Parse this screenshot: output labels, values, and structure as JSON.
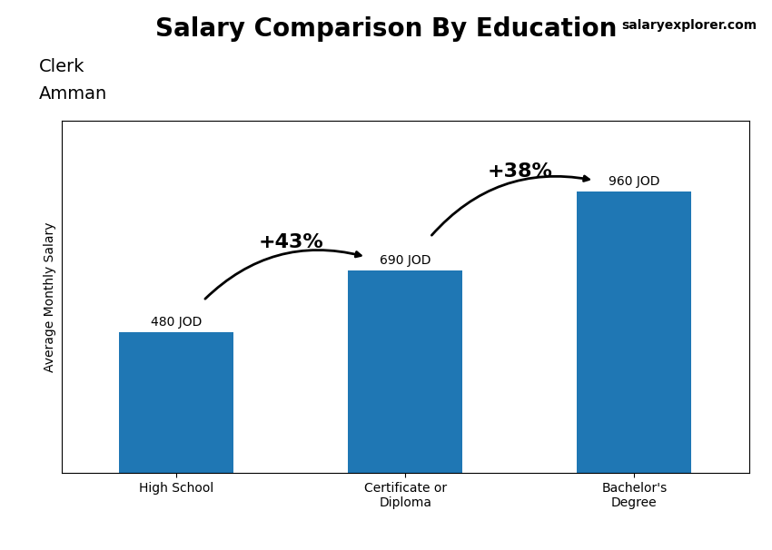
{
  "chart_data": {
    "type": "bar",
    "title": "Salary Comparison By Education",
    "subtitle": [
      "Clerk",
      "Amman"
    ],
    "brand": "salaryexplorer.com",
    "ylabel": "Average Monthly Salary",
    "categories": [
      "High School",
      "Certificate or\nDiploma",
      "Bachelor's\nDegree"
    ],
    "values": [
      480,
      690,
      960
    ],
    "value_labels": [
      "480 JOD",
      "690 JOD",
      "960 JOD"
    ],
    "data_labels": true,
    "ylim": [
      0,
      1200
    ],
    "tick_labels": "x",
    "grid": false,
    "annotations": [
      {
        "text": "+43%",
        "from": "High School",
        "to": "Certificate or\nDiploma"
      },
      {
        "text": "+38%",
        "from": "Certificate or\nDiploma",
        "to": "Bachelor's\nDegree"
      }
    ]
  }
}
